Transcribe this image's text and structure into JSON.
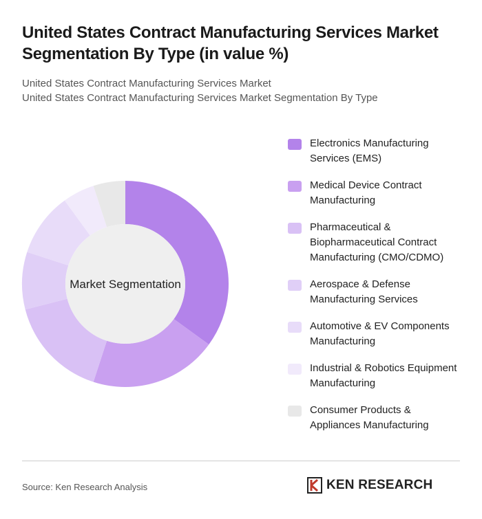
{
  "chart_data": {
    "type": "donut",
    "title": "United States Contract Manufacturing Services Market Segmentation By Type (in value %)",
    "subtitle": [
      "United States Contract Manufacturing Services Market",
      "United States Contract Manufacturing Services Market Segmentation By Type"
    ],
    "center_label": "Market Segmentation",
    "categories": [
      "Electronics Manufacturing Services (EMS)",
      "Medical Device Contract Manufacturing",
      "Pharmaceutical & Biopharmaceutical Contract Manufacturing (CMO/CDMO)",
      "Aerospace & Defense Manufacturing Services",
      "Automotive & EV Components Manufacturing",
      "Industrial & Robotics Equipment Manufacturing",
      "Consumer Products & Appliances Manufacturing"
    ],
    "values": [
      35,
      20,
      16,
      9,
      10,
      5,
      5
    ],
    "colors": [
      "#b383ea",
      "#c9a0f0",
      "#d9c1f5",
      "#e0cff7",
      "#e8dcf9",
      "#f1eafb",
      "#e8e8e8"
    ],
    "source": "Source: Ken Research Analysis",
    "logo": "KEN RESEARCH"
  }
}
